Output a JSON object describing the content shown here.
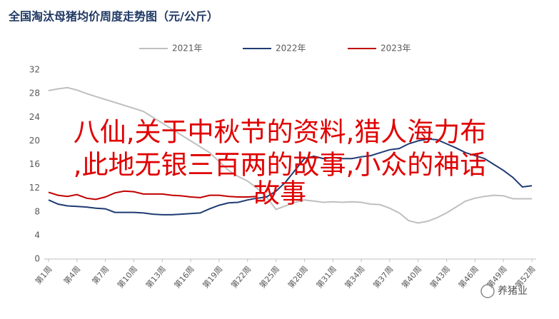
{
  "chart_data": {
    "type": "line",
    "title": "全国淘汰母猪均价周度走势图（元/公斤）",
    "categories": [
      "第1周",
      null,
      null,
      "第4周",
      null,
      null,
      "第7周",
      null,
      null,
      "第10周",
      null,
      null,
      "第13周",
      null,
      null,
      "第16周",
      null,
      null,
      "第19周",
      null,
      null,
      "第22周",
      null,
      null,
      "第25周",
      null,
      null,
      "第28周",
      null,
      null,
      "第31周",
      null,
      null,
      "第34周",
      null,
      null,
      "第37周",
      null,
      null,
      "第40周",
      null,
      null,
      "第43周",
      null,
      null,
      "第46周",
      null,
      null,
      "第49周",
      null,
      null,
      "第52周"
    ],
    "series": [
      {
        "name": "2021年",
        "color": "#bfbfbf",
        "values": [
          28.5,
          28.8,
          29,
          28.6,
          28,
          27.5,
          27,
          26.5,
          26,
          25.5,
          25,
          24,
          23,
          22,
          21,
          20,
          19,
          18,
          16.5,
          15,
          14,
          13.2,
          12,
          10.5,
          8.4,
          9,
          9.6,
          10,
          9.8,
          9.6,
          9.7,
          9.6,
          9.7,
          9.6,
          9.3,
          9.2,
          8.6,
          7.8,
          6.5,
          6.1,
          6.4,
          7,
          7.8,
          8.8,
          9.8,
          10.3,
          10.6,
          10.8,
          10.7,
          10.2,
          10.2,
          10.2
        ]
      },
      {
        "name": "2022年",
        "color": "#1f3b73",
        "values": [
          10,
          9.3,
          9,
          8.9,
          8.8,
          8.6,
          8.5,
          7.9,
          7.9,
          7.9,
          7.8,
          7.6,
          7.5,
          7.5,
          7.6,
          7.7,
          7.8,
          8.5,
          9.1,
          9.5,
          9.6,
          10,
          10.3,
          10.5,
          11.5,
          13,
          15,
          17,
          17.4,
          17,
          17.2,
          17,
          17,
          17.3,
          17.5,
          18,
          18.5,
          18.7,
          19.5,
          20,
          20.3,
          20.2,
          19.5,
          18.8,
          18,
          17.5,
          17,
          16,
          15,
          13.8,
          12.2,
          12.4
        ]
      },
      {
        "name": "2023年",
        "color": "#c00000",
        "values": [
          11.3,
          10.8,
          10.6,
          10.9,
          10.3,
          10.1,
          10.5,
          11.2,
          11.5,
          11.4,
          11,
          11,
          11,
          10.8,
          10.7,
          10.5,
          10.4,
          10.8,
          10.8,
          10.6,
          10.5,
          10.5,
          10.6,
          null,
          null,
          null,
          null,
          null,
          null,
          null,
          null,
          null,
          null,
          null,
          null,
          null,
          null,
          null,
          null,
          null,
          null,
          null,
          null,
          null,
          null,
          null,
          null,
          null,
          null,
          null,
          null,
          null
        ]
      }
    ],
    "ylim": [
      0,
      32
    ],
    "yticks": [
      0,
      4,
      8,
      12,
      16,
      20,
      24,
      28,
      32
    ],
    "grid": false,
    "legend": "top",
    "annotations": [
      "八仙,关于中秋节的资料,猎人海力布",
      ",此地无银三百两的故事,小众的神话",
      "故事"
    ],
    "watermark": "养猪业"
  }
}
